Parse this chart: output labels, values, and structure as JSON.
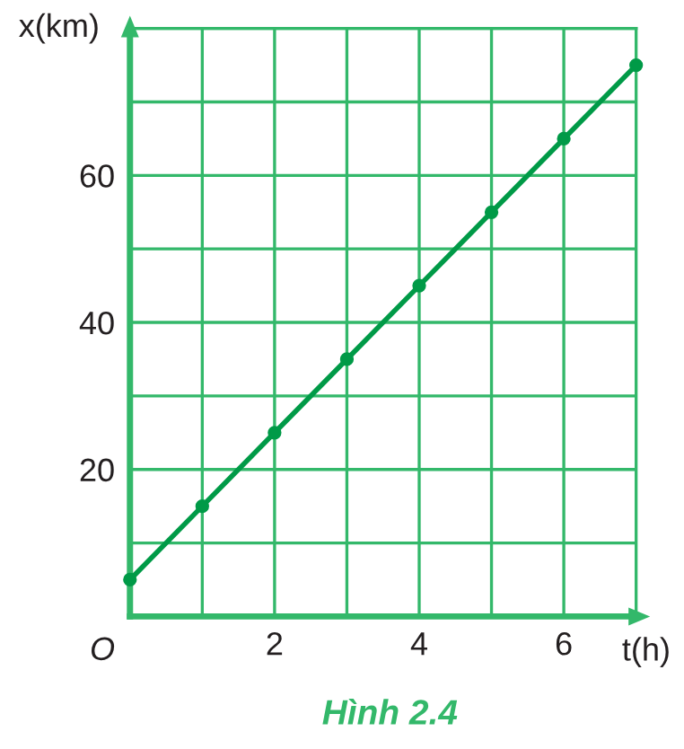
{
  "chart_data": {
    "type": "line",
    "title": "Hình 2.4",
    "xlabel": "t(h)",
    "ylabel": "x(km)",
    "x": [
      0,
      1,
      2,
      3,
      4,
      5,
      6,
      7
    ],
    "series": [
      {
        "color": "#009a47",
        "values": [
          5,
          15,
          25,
          35,
          45,
          55,
          65,
          75
        ]
      }
    ],
    "xlim": [
      0,
      7
    ],
    "xticks": [
      {
        "value": 0,
        "label": null
      },
      {
        "value": 1,
        "label": null
      },
      2,
      {
        "value": 3,
        "label": null
      },
      4,
      {
        "value": 5,
        "label": null
      },
      6,
      {
        "value": 7,
        "label": null
      }
    ],
    "ylim": [
      0,
      80
    ],
    "yticks": [
      {
        "value": 0,
        "label": null
      },
      {
        "value": 10,
        "label": null
      },
      20,
      {
        "value": 30,
        "label": null
      },
      40,
      {
        "value": 50,
        "label": null
      },
      60,
      {
        "value": 70,
        "label": null
      },
      {
        "value": 80,
        "label": null
      }
    ],
    "grid": true,
    "marker": "circle",
    "line_style": "solid",
    "annotations": [
      "O"
    ]
  }
}
